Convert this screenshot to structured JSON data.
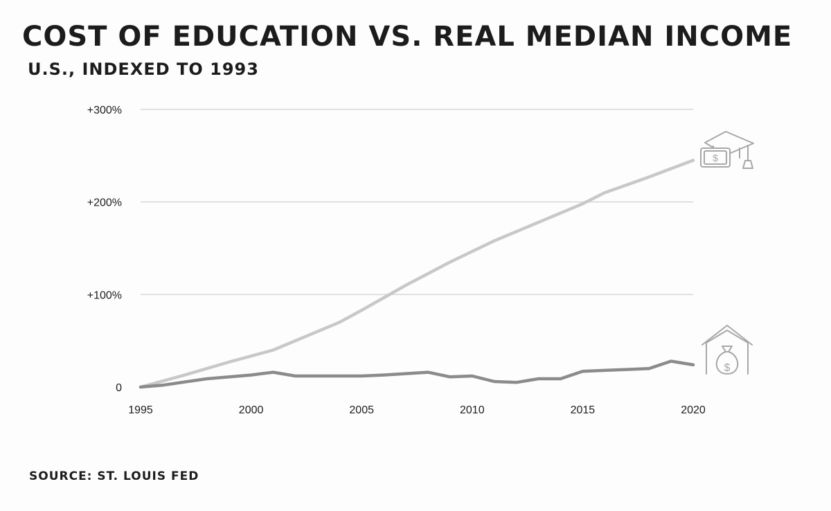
{
  "title": "COST OF EDUCATION VS. REAL MEDIAN INCOME",
  "subtitle": "U.S., INDEXED TO 1993",
  "source": "SOURCE: ST. LOUIS FED",
  "colors": {
    "education": "#c8c8c8",
    "income": "#8c8a8c",
    "grid": "#d6d6d6",
    "icon": "#a7a7a7",
    "text": "#1c1c1c"
  },
  "chart_data": {
    "type": "line",
    "title": "COST OF EDUCATION VS. REAL MEDIAN INCOME",
    "subtitle": "U.S., INDEXED TO 1993",
    "xlabel": "",
    "ylabel": "",
    "xlim": [
      1995,
      2020
    ],
    "ylim": [
      0,
      300
    ],
    "grid": true,
    "x_ticks": [
      1995,
      2000,
      2005,
      2010,
      2015,
      2020
    ],
    "x_tick_labels": [
      "1995",
      "2000",
      "2005",
      "2010",
      "2015",
      "2020"
    ],
    "y_ticks": [
      0,
      100,
      200,
      300
    ],
    "y_tick_labels": [
      "0",
      "+100%",
      "+200%",
      "+300%"
    ],
    "series": [
      {
        "name": "Cost of education",
        "icon": "graduation-cap-money-icon",
        "x": [
          1995,
          1997,
          1999,
          2001,
          2003,
          2004,
          2005,
          2007,
          2009,
          2011,
          2013,
          2015,
          2016,
          2018,
          2020
        ],
        "values": [
          0,
          13,
          27,
          40,
          60,
          70,
          83,
          110,
          135,
          158,
          178,
          198,
          210,
          227,
          245
        ]
      },
      {
        "name": "Real median income",
        "icon": "house-money-bag-icon",
        "x": [
          1995,
          1996,
          1998,
          2000,
          2001,
          2002,
          2003,
          2005,
          2006,
          2008,
          2009,
          2010,
          2011,
          2012,
          2013,
          2014,
          2015,
          2016,
          2017,
          2018,
          2019,
          2020
        ],
        "values": [
          0,
          2,
          9,
          13,
          16,
          12,
          12,
          12,
          13,
          16,
          11,
          12,
          6,
          5,
          9,
          9,
          17,
          18,
          19,
          20,
          28,
          24
        ]
      }
    ]
  }
}
